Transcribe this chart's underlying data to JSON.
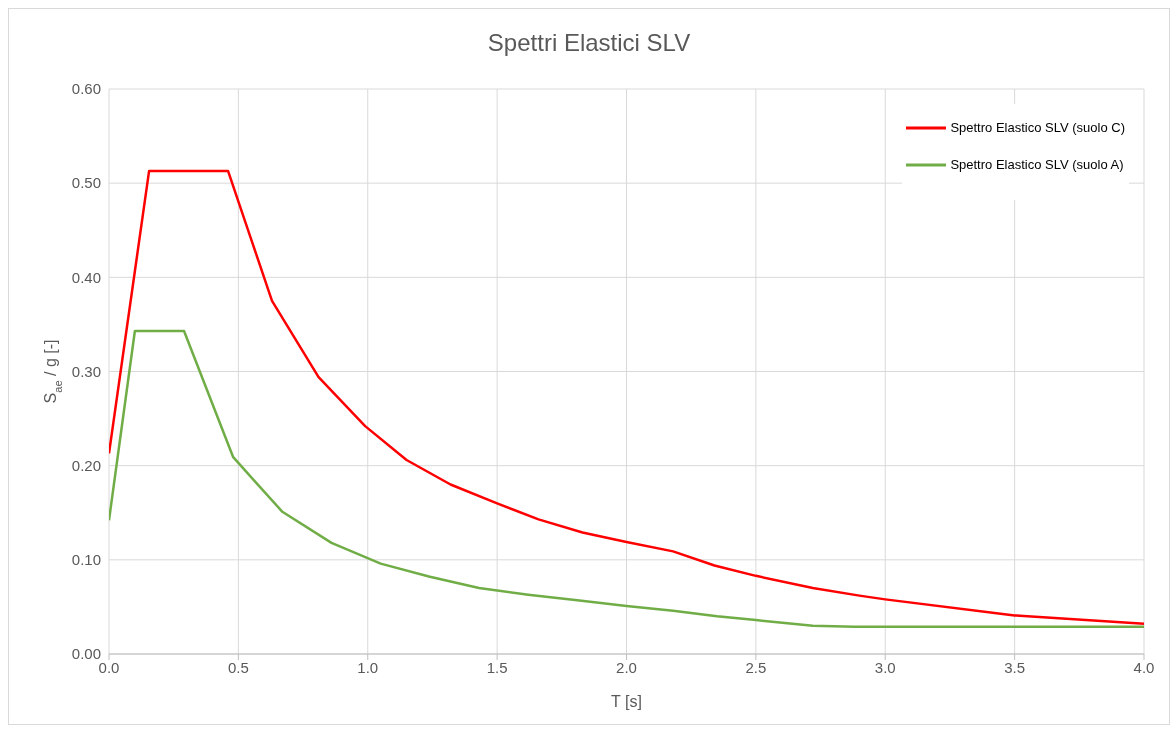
{
  "chart_data": {
    "type": "line",
    "title": "Spettri Elastici SLV",
    "xlabel": "T [s]",
    "ylabel": "S$_{ae}$ / g [-]",
    "xlim": [
      0,
      4
    ],
    "xticks": [
      {
        "value": 0,
        "label": "0.0"
      },
      {
        "value": 0.5,
        "label": "0.5"
      },
      {
        "value": 1,
        "label": "1.0"
      },
      {
        "value": 1.5,
        "label": "1.5"
      },
      {
        "value": 2,
        "label": "2.0"
      },
      {
        "value": 2.5,
        "label": "2.5"
      },
      {
        "value": 3,
        "label": "3.0"
      },
      {
        "value": 3.5,
        "label": "3.5"
      },
      {
        "value": 4,
        "label": "4.0"
      }
    ],
    "ylim": [
      0,
      0.6
    ],
    "yticks": [
      {
        "value": 0,
        "label": "0.00"
      },
      {
        "value": 0.1,
        "label": "0.10"
      },
      {
        "value": 0.2,
        "label": "0.20"
      },
      {
        "value": 0.3,
        "label": "0.30"
      },
      {
        "value": 0.4,
        "label": "0.40"
      },
      {
        "value": 0.5,
        "label": "0.50"
      },
      {
        "value": 0.6,
        "label": "0.60"
      }
    ],
    "grid": true,
    "legend": "top right",
    "marker": "none",
    "line_style": "solid",
    "series": [
      {
        "name": "Spettro Elastico SLV (suolo C)",
        "color": "#ff0000",
        "x": [
          0,
          0.155,
          0.46,
          0.63,
          0.81,
          0.99,
          1.15,
          1.32,
          1.5,
          1.66,
          1.83,
          2.0,
          2.18,
          2.34,
          2.5,
          2.72,
          2.9,
          3.0,
          3.5,
          4.0
        ],
        "values": [
          0.213,
          0.513,
          0.513,
          0.375,
          0.294,
          0.242,
          0.206,
          0.18,
          0.16,
          0.143,
          0.129,
          0.119,
          0.109,
          0.094,
          0.083,
          0.07,
          0.062,
          0.058,
          0.041,
          0.032
        ]
      },
      {
        "name": "Spettro Elastico SLV (suolo A)",
        "color": "#70ad47",
        "x": [
          0,
          0.1,
          0.29,
          0.48,
          0.67,
          0.86,
          1.05,
          1.24,
          1.43,
          1.62,
          1.81,
          2.0,
          2.18,
          2.35,
          2.5,
          2.72,
          2.88,
          4.0
        ],
        "values": [
          0.142,
          0.343,
          0.343,
          0.209,
          0.151,
          0.118,
          0.096,
          0.082,
          0.07,
          0.063,
          0.057,
          0.051,
          0.046,
          0.04,
          0.036,
          0.03,
          0.029,
          0.029
        ]
      }
    ]
  }
}
